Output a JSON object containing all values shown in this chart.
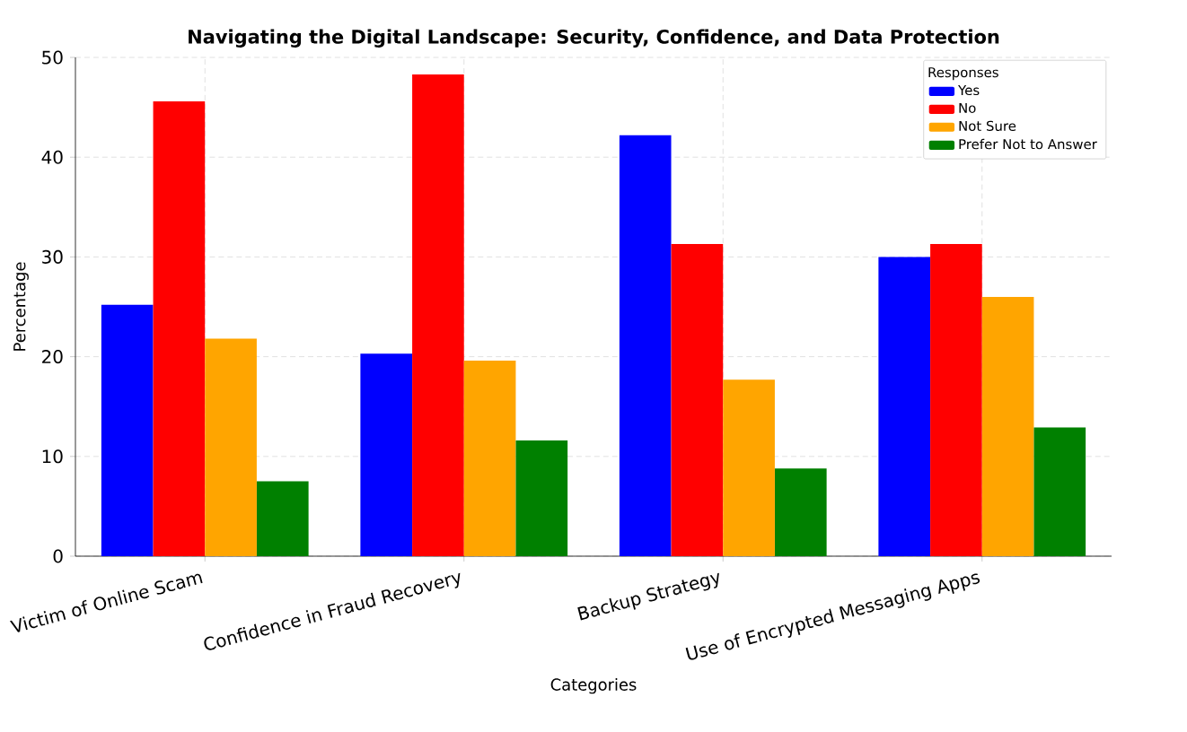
{
  "chart_data": {
    "type": "bar",
    "title": "Navigating the Digital Landscape: Security, Confidence, and Data Protection",
    "xlabel": "Categories",
    "ylabel": "Percentage",
    "legend_title": "Responses",
    "categories": [
      "Victim of Online Scam",
      "Confidence in Fraud Recovery",
      "Backup Strategy",
      "Use of Encrypted Messaging Apps"
    ],
    "series": [
      {
        "name": "Yes",
        "color": "#0000ff",
        "values": [
          25.2,
          20.3,
          42.2,
          30.0
        ]
      },
      {
        "name": "No",
        "color": "#ff0000",
        "values": [
          45.6,
          48.3,
          31.3,
          31.3
        ]
      },
      {
        "name": "Not Sure",
        "color": "#ffa500",
        "values": [
          21.8,
          19.6,
          17.7,
          26.0
        ]
      },
      {
        "name": "Prefer Not to Answer",
        "color": "#008000",
        "values": [
          7.5,
          11.6,
          8.8,
          12.9
        ]
      }
    ],
    "ylim": [
      0,
      50
    ],
    "yticks": [
      0,
      10,
      20,
      30,
      40,
      50
    ],
    "grid": true,
    "legend": "top right"
  }
}
